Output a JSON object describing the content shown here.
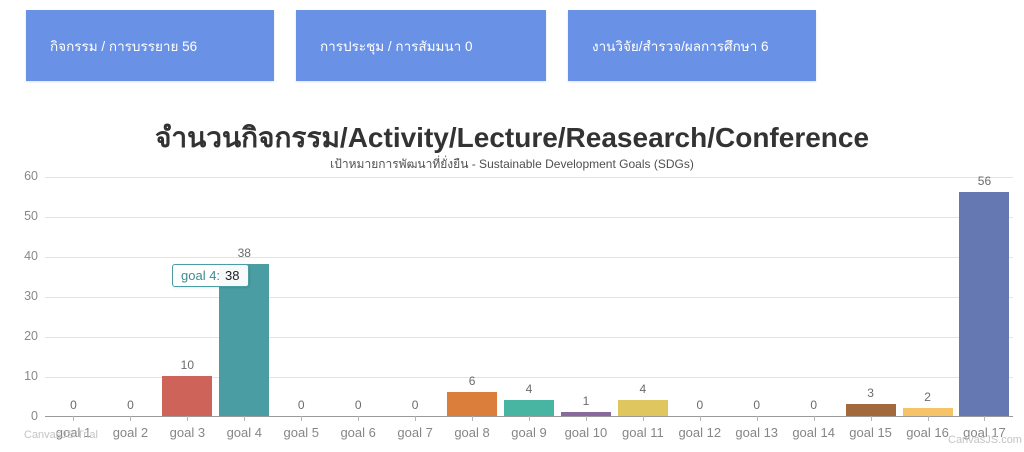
{
  "summary_cards": [
    {
      "label": "กิจกรรม / การบรรยาย 56",
      "color": "#6991E5"
    },
    {
      "label": "การประชุม / การสัมมนา 0",
      "color": "#6991E5"
    },
    {
      "label": "งานวิจัย/สำรวจ/ผลการศึกษา 6",
      "color": "#6991E5"
    }
  ],
  "chart_data": {
    "type": "bar",
    "title": "จำนวนกิจกรรม/Activity/Lecture/Reasearch/Conference",
    "subtitle": "เป้าหมายการพัฒนาที่ยั่งยืน - Sustainable Development Goals (SDGs)",
    "categories": [
      "goal 1",
      "goal 2",
      "goal 3",
      "goal 4",
      "goal 5",
      "goal 6",
      "goal 7",
      "goal 8",
      "goal 9",
      "goal 10",
      "goal 11",
      "goal 12",
      "goal 13",
      "goal 14",
      "goal 15",
      "goal 16",
      "goal 17"
    ],
    "values": [
      0,
      0,
      10,
      38,
      0,
      0,
      0,
      6,
      4,
      1,
      4,
      0,
      0,
      0,
      3,
      2,
      56
    ],
    "bar_colors": [
      null,
      null,
      "#CE6459",
      "#4A9DA2",
      null,
      null,
      null,
      "#DC7E3B",
      "#48B5A3",
      "#87689F",
      "#E0C65F",
      null,
      null,
      null,
      "#A2693D",
      "#F7C368",
      "#6678B2"
    ],
    "xlabel": "",
    "ylabel": "",
    "ylim": [
      0,
      60
    ],
    "y_ticks": [
      0,
      10,
      20,
      30,
      40,
      50,
      60
    ],
    "grid": true,
    "legend": "none",
    "value_labels": true
  },
  "tooltip": {
    "label": "goal 4:",
    "value": "38",
    "accent_color": "#4A9DA2"
  },
  "watermarks": {
    "trial": "CanvasJS Trial",
    "site": "CanvasJS.com"
  }
}
